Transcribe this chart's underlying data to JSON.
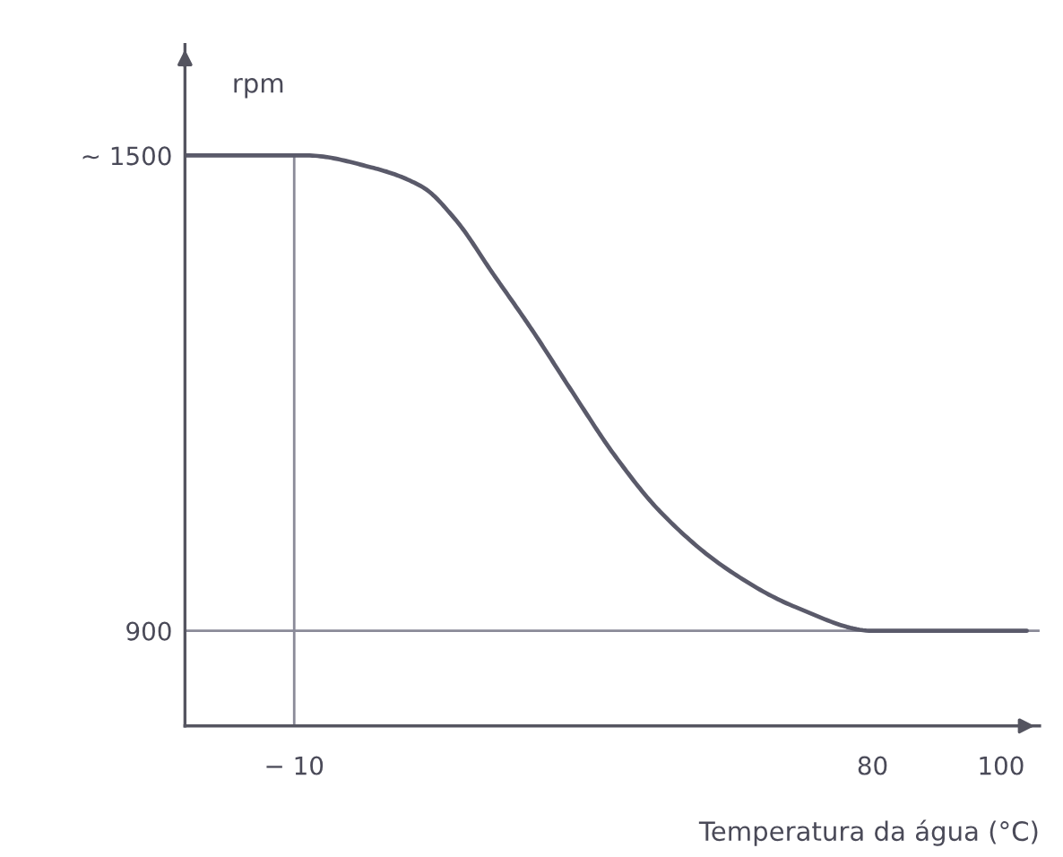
{
  "chart_data": {
    "type": "line",
    "xlabel": "Temperatura da água (°C)",
    "ylabel": "rpm",
    "x": [
      -27,
      -8,
      2,
      10,
      15,
      21,
      27,
      33,
      40,
      47,
      57,
      68,
      80,
      104
    ],
    "values": [
      1500,
      1500,
      1485,
      1460,
      1420,
      1350,
      1280,
      1205,
      1120,
      1050,
      980,
      930,
      900,
      900
    ],
    "color": "#5a5a6a",
    "marker": "none",
    "line_style": "solid",
    "xlim": [
      -27,
      106
    ],
    "ylim": [
      780,
      1640
    ],
    "xticks": [
      {
        "value": -10,
        "label": "− 10"
      },
      80,
      100
    ],
    "yticks": [
      900,
      {
        "value": 1500,
        "label": "~ 1500"
      }
    ],
    "ref_lines": [
      {
        "axis": "y",
        "value": 900,
        "color": "#8a8a98"
      },
      {
        "axis": "x",
        "value": -10,
        "color": "#8a8a98"
      }
    ],
    "grid": false
  }
}
